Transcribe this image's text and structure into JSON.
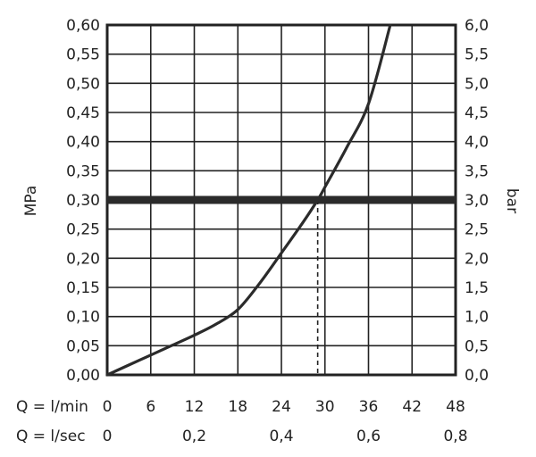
{
  "chart_data": {
    "type": "line",
    "left_axis": {
      "label": "MPa",
      "ylim": [
        0,
        0.6
      ],
      "ticks": [
        "0,00",
        "0,05",
        "0,10",
        "0,15",
        "0,20",
        "0,25",
        "0,30",
        "0,35",
        "0,40",
        "0,45",
        "0,50",
        "0,55",
        "0,60"
      ]
    },
    "right_axis": {
      "label": "bar",
      "ylim": [
        0,
        6
      ],
      "ticks": [
        "0,0",
        "0,5",
        "1,0",
        "1,5",
        "2,0",
        "2,5",
        "3,0",
        "3,5",
        "4,0",
        "4,5",
        "5,0",
        "5,5",
        "6,0"
      ]
    },
    "x_axis_lmin": {
      "label": "Q = l/min",
      "xlim": [
        0,
        48
      ],
      "ticks": [
        {
          "value": 0,
          "label": "0"
        },
        {
          "value": 6,
          "label": "6"
        },
        {
          "value": 12,
          "label": "12"
        },
        {
          "value": 18,
          "label": "18"
        },
        {
          "value": 24,
          "label": "24"
        },
        {
          "value": 30,
          "label": "30"
        },
        {
          "value": 36,
          "label": "36"
        },
        {
          "value": 42,
          "label": "42"
        },
        {
          "value": 48,
          "label": "48"
        }
      ]
    },
    "x_axis_lsec": {
      "label": "Q = l/sec",
      "ticks": [
        {
          "value": 0,
          "label": "0"
        },
        {
          "value": 0.2,
          "label": "0,2"
        },
        {
          "value": 0.4,
          "label": "0,4"
        },
        {
          "value": 0.6,
          "label": "0,6"
        },
        {
          "value": 0.8,
          "label": "0,8"
        }
      ]
    },
    "grid": true,
    "curve": {
      "x": [
        0,
        3,
        6,
        9,
        12,
        15,
        18,
        21,
        24,
        27,
        29,
        30,
        33,
        36,
        39
      ],
      "y": [
        0.0,
        0.017,
        0.034,
        0.051,
        0.068,
        0.087,
        0.112,
        0.157,
        0.209,
        0.262,
        0.3,
        0.322,
        0.39,
        0.465,
        0.6
      ]
    },
    "reference_line": {
      "y": 0.3
    },
    "reference_drop": {
      "x": 29,
      "y": 0.3
    }
  }
}
